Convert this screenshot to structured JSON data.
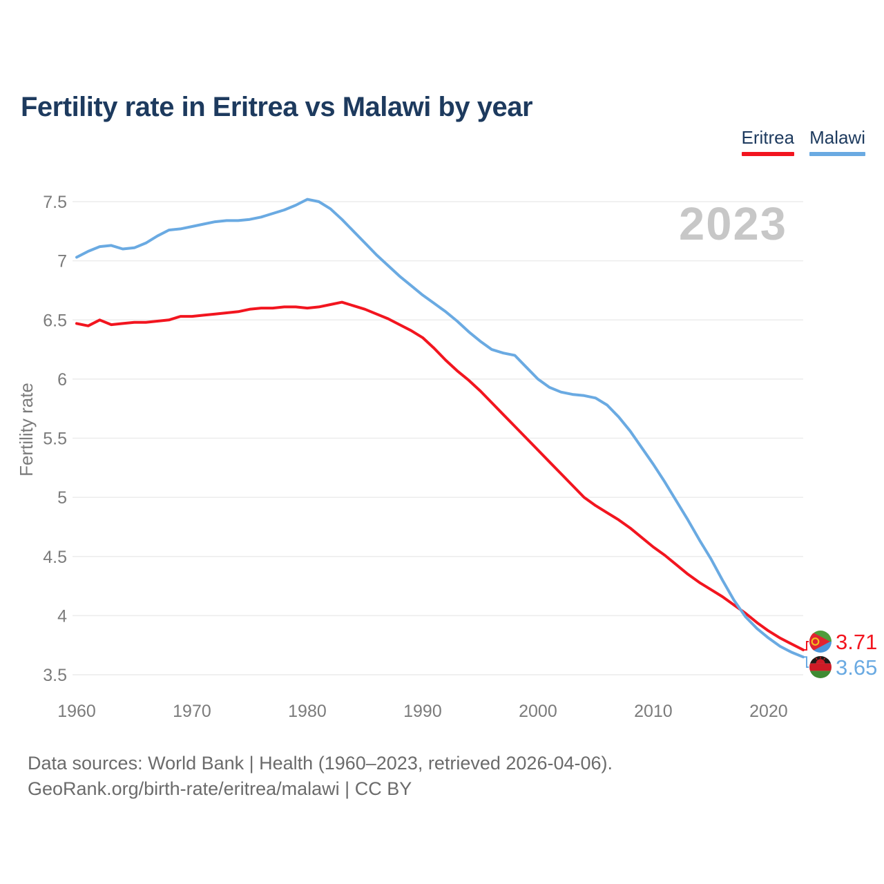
{
  "title": "Fertility rate in Eritrea vs Malawi by year",
  "watermark_year": "2023",
  "y_axis_label": "Fertility rate",
  "legend": [
    {
      "label": "Eritrea",
      "color": "#f2151f"
    },
    {
      "label": "Malawi",
      "color": "#6aaae2"
    }
  ],
  "end_labels": [
    {
      "series": "Eritrea",
      "value": "3.71",
      "flag_icon": "eritrea-flag-icon"
    },
    {
      "series": "Malawi",
      "value": "3.65",
      "flag_icon": "malawi-flag-icon"
    }
  ],
  "icons": {
    "eritrea_flag": "circular Eritrea flag (green/blue halves, red triangle, gold wreath)",
    "malawi_flag": "circular Malawi flag (black/red/green stripes, rising sun)"
  },
  "colors": {
    "eritrea": "#f2151f",
    "malawi": "#6aaae2",
    "title": "#1d3a5e",
    "axis_text": "#7b7b7b",
    "watermark": "#c7c7c7",
    "grid": "#ececec",
    "footer": "#6b6b6b"
  },
  "footer": {
    "line1": "Data sources: World Bank | Health (1960–2023, retrieved 2026-04-06).",
    "line2": "GeoRank.org/birth-rate/eritrea/malawi | CC BY"
  },
  "chart_data": {
    "type": "line",
    "title": "Fertility rate in Eritrea vs Malawi by year",
    "xlabel": "",
    "ylabel": "Fertility rate",
    "xlim": [
      1960,
      2023
    ],
    "ylim": [
      3.5,
      7.5
    ],
    "xticks": [
      1960,
      1970,
      1980,
      1990,
      2000,
      2010,
      2020
    ],
    "yticks": [
      3.5,
      4,
      4.5,
      5,
      5.5,
      6,
      6.5,
      7,
      7.5
    ],
    "grid": "horizontal",
    "legend_position": "top-right",
    "x": [
      1960,
      1961,
      1962,
      1963,
      1964,
      1965,
      1966,
      1967,
      1968,
      1969,
      1970,
      1971,
      1972,
      1973,
      1974,
      1975,
      1976,
      1977,
      1978,
      1979,
      1980,
      1981,
      1982,
      1983,
      1984,
      1985,
      1986,
      1987,
      1988,
      1989,
      1990,
      1991,
      1992,
      1993,
      1994,
      1995,
      1996,
      1997,
      1998,
      1999,
      2000,
      2001,
      2002,
      2003,
      2004,
      2005,
      2006,
      2007,
      2008,
      2009,
      2010,
      2011,
      2012,
      2013,
      2014,
      2015,
      2016,
      2017,
      2018,
      2019,
      2020,
      2021,
      2022,
      2023
    ],
    "series": [
      {
        "name": "Eritrea",
        "color": "#f2151f",
        "values": [
          6.47,
          6.45,
          6.5,
          6.46,
          6.47,
          6.48,
          6.48,
          6.49,
          6.5,
          6.53,
          6.53,
          6.54,
          6.55,
          6.56,
          6.57,
          6.59,
          6.6,
          6.6,
          6.61,
          6.61,
          6.6,
          6.61,
          6.63,
          6.65,
          6.62,
          6.59,
          6.55,
          6.51,
          6.46,
          6.41,
          6.35,
          6.26,
          6.16,
          6.07,
          5.99,
          5.9,
          5.8,
          5.7,
          5.6,
          5.5,
          5.4,
          5.3,
          5.2,
          5.1,
          5.0,
          4.93,
          4.87,
          4.81,
          4.74,
          4.66,
          4.58,
          4.51,
          4.43,
          4.35,
          4.28,
          4.22,
          4.16,
          4.09,
          4.02,
          3.94,
          3.87,
          3.81,
          3.76,
          3.71
        ]
      },
      {
        "name": "Malawi",
        "color": "#6aaae2",
        "values": [
          7.03,
          7.08,
          7.12,
          7.13,
          7.1,
          7.11,
          7.15,
          7.21,
          7.26,
          7.27,
          7.29,
          7.31,
          7.33,
          7.34,
          7.34,
          7.35,
          7.37,
          7.4,
          7.43,
          7.47,
          7.52,
          7.5,
          7.44,
          7.35,
          7.25,
          7.15,
          7.05,
          6.96,
          6.87,
          6.79,
          6.71,
          6.64,
          6.57,
          6.49,
          6.4,
          6.32,
          6.25,
          6.22,
          6.2,
          6.1,
          6.0,
          5.93,
          5.89,
          5.87,
          5.86,
          5.84,
          5.78,
          5.68,
          5.56,
          5.42,
          5.28,
          5.13,
          4.97,
          4.81,
          4.64,
          4.48,
          4.3,
          4.13,
          3.99,
          3.89,
          3.81,
          3.74,
          3.69,
          3.65
        ]
      }
    ]
  }
}
